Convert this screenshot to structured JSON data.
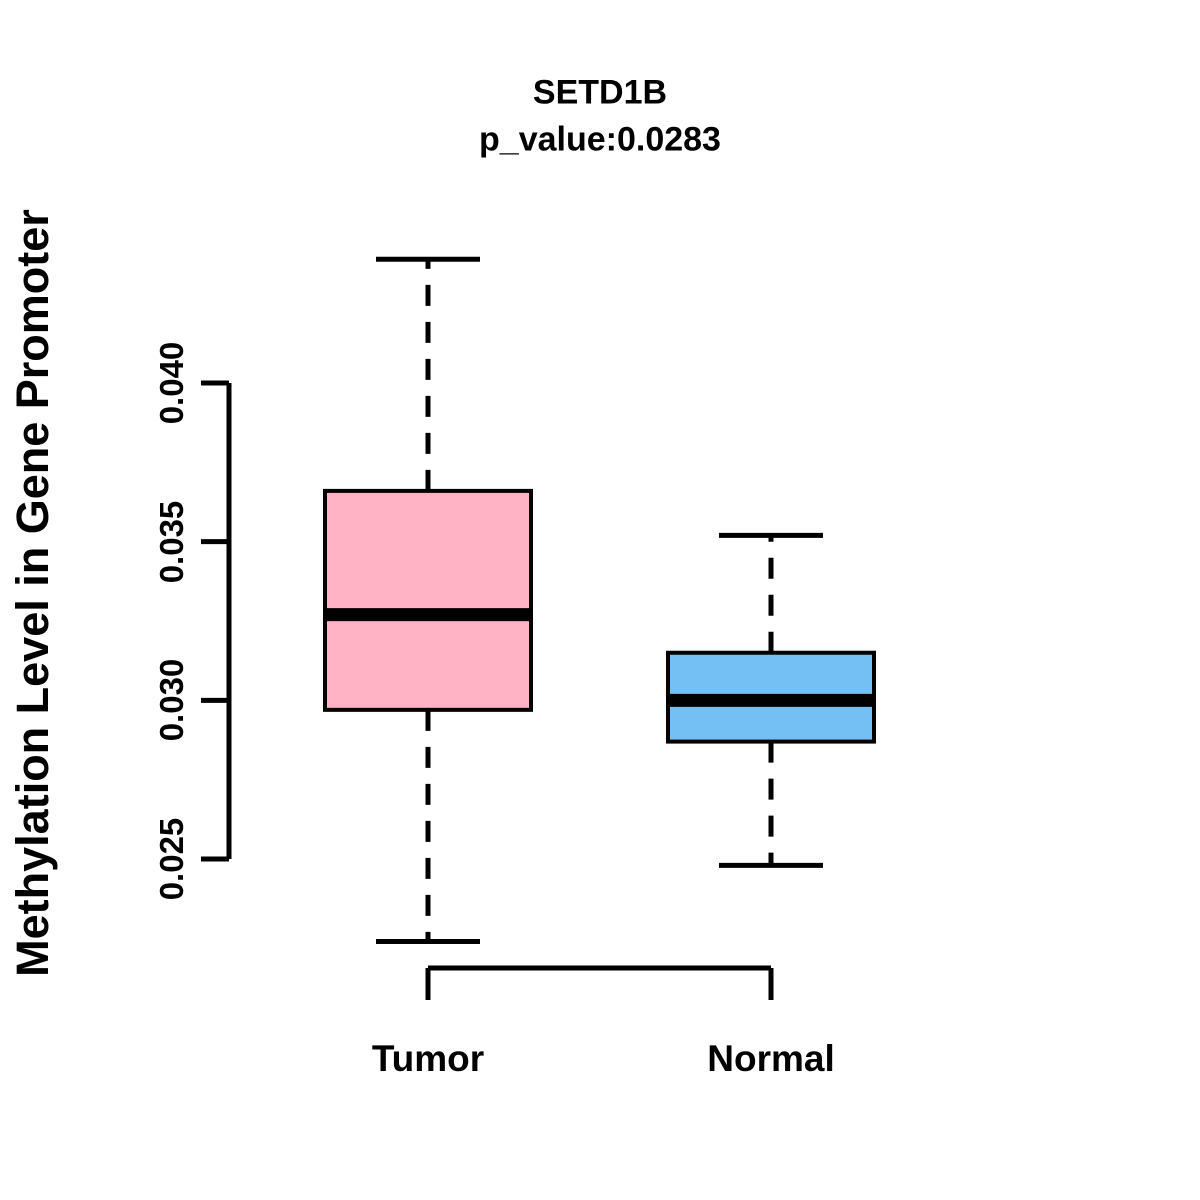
{
  "page": {
    "background": "#ffffff",
    "line_color": "#000000"
  },
  "chart_data": {
    "type": "boxplot",
    "title": "SETD1B",
    "subtitle": "p_value:0.0283",
    "p_value": 0.0283,
    "ylabel": "Methylation Level in Gene Promoter",
    "xlabel": "",
    "categories": [
      "Tumor",
      "Normal"
    ],
    "yticks": [
      0.025,
      0.03,
      0.035,
      0.04
    ],
    "ytick_labels": [
      "0.025",
      "0.030",
      "0.035",
      "0.040"
    ],
    "yaxis_range": [
      0.025,
      0.04
    ],
    "grid": false,
    "legend_position": "none",
    "series": [
      {
        "name": "Tumor",
        "fill_color": "#FFB3C4",
        "border_color": "#000000",
        "whisker_low": 0.0224,
        "q1": 0.0297,
        "median": 0.0327,
        "q3": 0.0366,
        "whisker_high": 0.0439
      },
      {
        "name": "Normal",
        "fill_color": "#74BFF4",
        "border_color": "#000000",
        "whisker_low": 0.0248,
        "q1": 0.0287,
        "median": 0.03,
        "q3": 0.0315,
        "whisker_high": 0.0352
      }
    ]
  }
}
